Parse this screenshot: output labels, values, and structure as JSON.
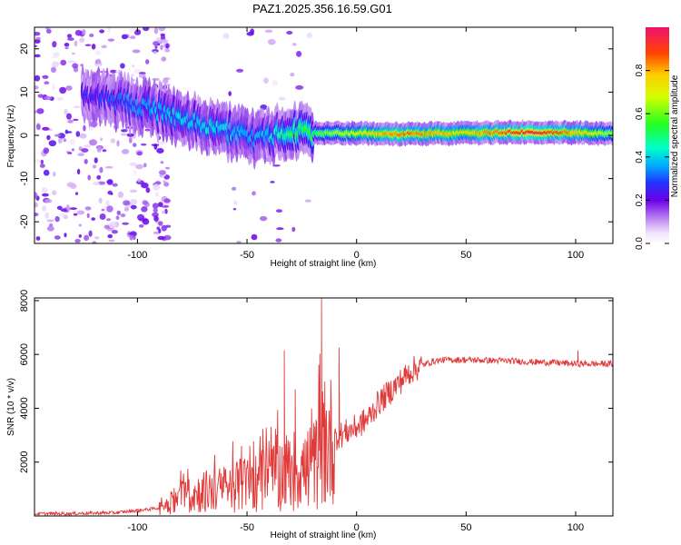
{
  "title": "PAZ1.2025.356.16.59.G01",
  "chart_data": [
    {
      "type": "heatmap",
      "xlabel": "Height of straight line (km)",
      "ylabel": "Frequency (Hz)",
      "xlim": [
        -147,
        117
      ],
      "ylim": [
        -25,
        25
      ],
      "xticks": [
        -100,
        -50,
        0,
        50,
        100
      ],
      "xtick_labels": [
        "-100",
        "-50",
        "0",
        "50",
        "100"
      ],
      "yticks": [
        -20,
        -10,
        0,
        10,
        20
      ],
      "ytick_labels": [
        "-20",
        "-10",
        "0",
        "10",
        "20"
      ],
      "ridge": {
        "description_points_height_km": [
          -120,
          -100,
          -80,
          -60,
          -45,
          -30,
          -20,
          0,
          20,
          50,
          80,
          100,
          117
        ],
        "center_freq_hz": [
          9,
          7,
          4,
          1,
          -1,
          1,
          0.5,
          0.5,
          0.3,
          0.5,
          0.8,
          0.6,
          0.5
        ],
        "peak_amplitude": [
          0.25,
          0.35,
          0.4,
          0.4,
          0.35,
          0.5,
          0.55,
          0.7,
          0.85,
          0.75,
          0.95,
          0.8,
          0.6
        ]
      },
      "colorbar": {
        "label": "Normalized spectral amplitude",
        "range": [
          0,
          1
        ],
        "ticks": [
          0,
          0.2,
          0.4,
          0.6,
          0.8
        ],
        "tick_labels": [
          "0.0",
          "0.2",
          "0.4",
          "0.6",
          "0.8"
        ]
      }
    },
    {
      "type": "line",
      "xlabel": "Height of straight line (km)",
      "ylabel": "SNR (10 * v/v)",
      "xlim": [
        -147,
        117
      ],
      "ylim": [
        0,
        8100
      ],
      "xticks": [
        -100,
        -50,
        0,
        50,
        100
      ],
      "xtick_labels": [
        "-100",
        "-50",
        "0",
        "50",
        "100"
      ],
      "yticks": [
        2000,
        4000,
        6000,
        8000
      ],
      "ytick_labels": [
        "2000",
        "4000",
        "6000",
        "8000"
      ],
      "series": [
        {
          "name": "SNR",
          "color": "#e03a3a",
          "x": [
            -147,
            -130,
            -110,
            -100,
            -90,
            -80,
            -70,
            -60,
            -50,
            -40,
            -30,
            -20,
            -15,
            -10,
            -5,
            0,
            5,
            10,
            15,
            20,
            25,
            30,
            35,
            40,
            50,
            60,
            70,
            80,
            90,
            100,
            110,
            117
          ],
          "values": [
            80,
            90,
            120,
            200,
            300,
            700,
            900,
            1000,
            1200,
            1400,
            1700,
            1800,
            2600,
            2900,
            3100,
            3300,
            3600,
            4200,
            4600,
            5000,
            5400,
            5600,
            5750,
            5800,
            5800,
            5780,
            5760,
            5720,
            5700,
            5650,
            5650,
            5650
          ],
          "spikes": [
            {
              "x": -33,
              "y": 6150
            },
            {
              "x": -28,
              "y": 4700
            },
            {
              "x": -16,
              "y": 8100
            },
            {
              "x": -8,
              "y": 6250
            },
            {
              "x": 101,
              "y": 6150
            }
          ]
        }
      ]
    }
  ],
  "colors": {
    "snr_line": "#e03a3a",
    "frame": "#000000"
  }
}
